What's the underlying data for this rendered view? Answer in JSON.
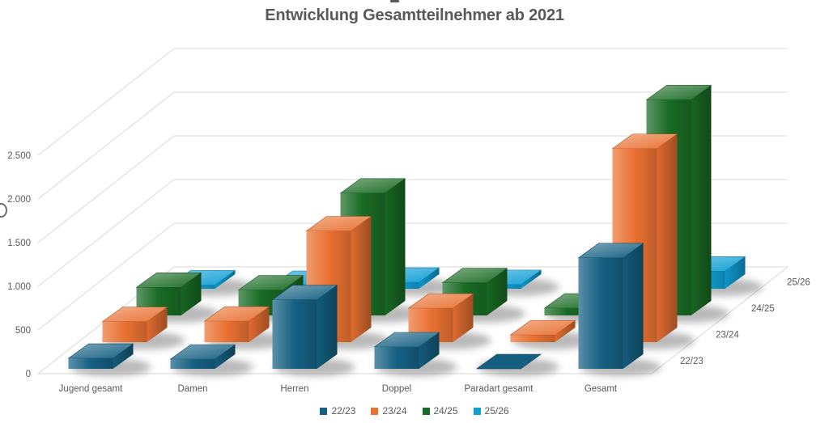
{
  "title": "Entwicklung Gesamtteilnehmer ab 2021",
  "chart_data": {
    "type": "bar",
    "subtype": "3d-column",
    "title": "Entwicklung Gesamtteilnehmer ab 2021",
    "categories": [
      "Jugend gesamt",
      "Damen",
      "Herren",
      "Doppel",
      "Paradart gesamt",
      "Gesamt"
    ],
    "series": [
      {
        "name": "22/23",
        "color": "#156082",
        "values": [
          120,
          110,
          790,
          250,
          0,
          1270
        ]
      },
      {
        "name": "23/24",
        "color": "#E97132",
        "values": [
          230,
          235,
          1250,
          380,
          80,
          2175
        ]
      },
      {
        "name": "24/25",
        "color": "#196B24",
        "values": [
          310,
          280,
          1350,
          360,
          80,
          2380
        ]
      },
      {
        "name": "25/26",
        "color": "#0F9ED5",
        "values": [
          40,
          35,
          70,
          45,
          0,
          190
        ]
      }
    ],
    "value_axis": {
      "tick_labels": [
        "0",
        "500",
        "1.000",
        "1.500",
        "2.000",
        "2.500"
      ],
      "tick_values": [
        0,
        500,
        1000,
        1500,
        2000,
        2500
      ],
      "min": 0,
      "max": 2500,
      "number_format": "german-thousands-dot"
    },
    "depth_axis_labels": [
      "22/23",
      "23/24",
      "24/25",
      "25/26"
    ],
    "legend_position": "bottom",
    "gridlines": true,
    "background": "#ffffff",
    "text_color": "#595959"
  },
  "artifacts": {
    "top_cropped_text_fragment": "▪",
    "left_cropped_glyph_fragment": "0"
  }
}
